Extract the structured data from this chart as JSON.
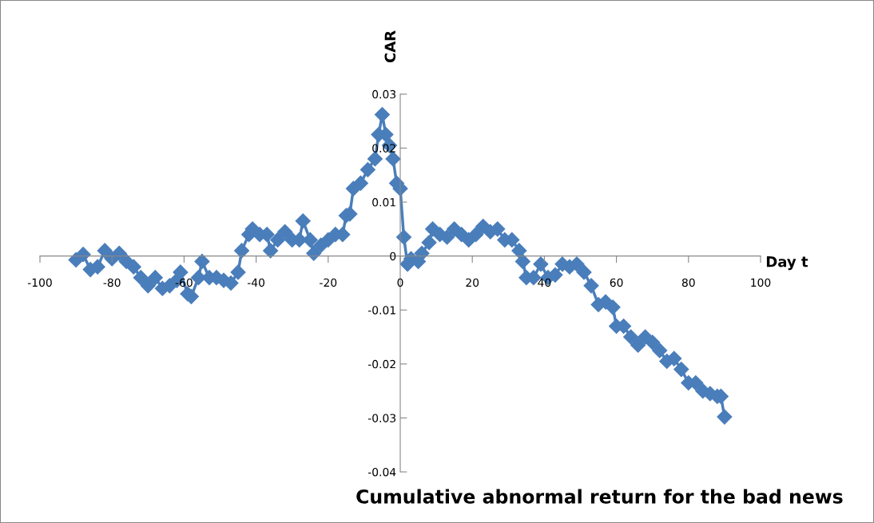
{
  "chart_data": {
    "type": "line",
    "title": "Cumulative abnormal return for the bad news",
    "xlabel": "Day t",
    "ylabel": "CAR",
    "x": [
      -90,
      -88,
      -86,
      -84,
      -82,
      -80,
      -78,
      -76,
      -74,
      -72,
      -70,
      -68,
      -66,
      -64,
      -62,
      -61,
      -59,
      -58,
      -56,
      -55,
      -53,
      -51,
      -49,
      -47,
      -45,
      -44,
      -42,
      -41,
      -39,
      -37,
      -36,
      -34,
      -32,
      -30,
      -28,
      -27,
      -25,
      -24,
      -22,
      -20,
      -18,
      -16,
      -15,
      -14,
      -13,
      -11,
      -9,
      -7,
      -6,
      -5,
      -4,
      -3,
      -2,
      -1,
      0,
      1,
      2,
      3,
      5,
      6,
      8,
      9,
      11,
      13,
      15,
      17,
      19,
      21,
      23,
      25,
      27,
      29,
      31,
      33,
      34,
      35,
      37,
      39,
      41,
      43,
      45,
      47,
      49,
      51,
      53,
      55,
      57,
      59,
      60,
      62,
      64,
      66,
      68,
      70,
      72,
      74,
      76,
      78,
      80,
      82,
      84,
      86,
      88,
      89,
      90
    ],
    "series": [
      {
        "color": "#4a7ebb",
        "values": [
          -0.0007,
          0.0003,
          -0.0025,
          -0.002,
          0.001,
          -0.0005,
          0.0005,
          -0.001,
          -0.002,
          -0.004,
          -0.0055,
          -0.004,
          -0.006,
          -0.0055,
          -0.0045,
          -0.003,
          -0.007,
          -0.0075,
          -0.004,
          -0.001,
          -0.004,
          -0.004,
          -0.0045,
          -0.005,
          -0.003,
          0.001,
          0.004,
          0.005,
          0.004,
          0.004,
          0.001,
          0.003,
          0.0045,
          0.003,
          0.003,
          0.0065,
          0.003,
          0.0005,
          0.002,
          0.003,
          0.004,
          0.004,
          0.0075,
          0.0078,
          0.0125,
          0.0135,
          0.016,
          0.018,
          0.0225,
          0.0262,
          0.0225,
          0.0205,
          0.018,
          0.0135,
          0.0125,
          0.0035,
          -0.0015,
          -0.0005,
          -0.001,
          0.0005,
          0.0025,
          0.005,
          0.004,
          0.0035,
          0.005,
          0.004,
          0.003,
          0.004,
          0.0055,
          0.0045,
          0.005,
          0.003,
          0.003,
          0.001,
          -0.001,
          -0.004,
          -0.004,
          -0.0015,
          -0.004,
          -0.0035,
          -0.0015,
          -0.002,
          -0.0015,
          -0.003,
          -0.0055,
          -0.009,
          -0.0085,
          -0.0095,
          -0.013,
          -0.013,
          -0.015,
          -0.0165,
          -0.015,
          -0.016,
          -0.0175,
          -0.0195,
          -0.019,
          -0.021,
          -0.0235,
          -0.0235,
          -0.025,
          -0.0255,
          -0.026,
          -0.026,
          -0.0298
        ]
      }
    ],
    "xlim": [
      -100,
      100
    ],
    "xticks": [
      -100,
      -80,
      -60,
      -40,
      -20,
      0,
      20,
      40,
      60,
      80,
      100
    ],
    "ylim": [
      -0.04,
      0.03
    ],
    "yticks": [
      -0.04,
      -0.03,
      -0.02,
      -0.01,
      0,
      0.01,
      0.02,
      0.03
    ],
    "marker": "diamond",
    "line_style": "solid",
    "grid": false,
    "legend": false
  }
}
